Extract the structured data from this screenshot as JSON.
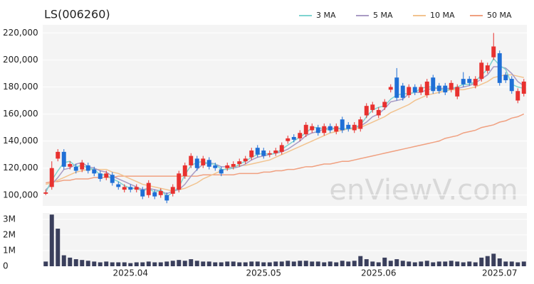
{
  "chart_data": {
    "type": "candlestick",
    "title": "LS(006260)",
    "watermark": "enViewV.com",
    "categories": [
      null,
      null,
      null,
      null,
      null,
      null,
      null,
      null,
      null,
      null,
      null,
      null,
      null,
      null,
      "2025.04",
      null,
      null,
      null,
      null,
      null,
      null,
      null,
      null,
      null,
      null,
      null,
      null,
      null,
      null,
      null,
      null,
      null,
      null,
      null,
      null,
      null,
      "2025.05",
      null,
      null,
      null,
      null,
      null,
      null,
      null,
      null,
      null,
      null,
      null,
      null,
      null,
      null,
      null,
      null,
      null,
      null,
      "2025.06",
      null,
      null,
      null,
      null,
      null,
      null,
      null,
      null,
      null,
      null,
      null,
      null,
      null,
      null,
      null,
      null,
      null,
      null,
      null,
      "2025.07",
      null,
      null,
      null,
      null
    ],
    "open": [
      101000,
      106000,
      127000,
      132000,
      121000,
      121000,
      119000,
      122000,
      119000,
      116000,
      113000,
      115000,
      108000,
      104000,
      106000,
      104000,
      104000,
      100000,
      102000,
      100000,
      100000,
      101000,
      104000,
      114000,
      122000,
      127000,
      122000,
      126000,
      122000,
      119000,
      120000,
      121000,
      123000,
      125000,
      128000,
      135000,
      133000,
      130000,
      131000,
      132000,
      140000,
      143000,
      142000,
      145000,
      148000,
      150000,
      146000,
      151000,
      147000,
      156000,
      152000,
      148000,
      149000,
      159000,
      163000,
      159000,
      165000,
      178000,
      187000,
      181000,
      174000,
      180000,
      176000,
      174000,
      187000,
      181000,
      181000,
      178000,
      173000,
      186000,
      186000,
      181000,
      186000,
      192000,
      202000,
      205000,
      189000,
      186000,
      170000,
      175000
    ],
    "high": [
      104000,
      125000,
      134000,
      134000,
      125000,
      123000,
      126000,
      124000,
      121000,
      118000,
      118000,
      117000,
      110000,
      108000,
      108000,
      108000,
      106000,
      111000,
      104000,
      105000,
      102000,
      108000,
      118000,
      124000,
      131000,
      129000,
      129000,
      128000,
      124000,
      121000,
      124000,
      125000,
      127000,
      129000,
      135000,
      137000,
      135000,
      133000,
      135000,
      139000,
      144000,
      145000,
      148000,
      154000,
      153000,
      152000,
      153000,
      153000,
      153000,
      158000,
      154000,
      154000,
      158000,
      168000,
      169000,
      165000,
      171000,
      182000,
      194000,
      183000,
      182000,
      182000,
      182000,
      186000,
      189000,
      183000,
      183000,
      185000,
      182000,
      191000,
      188000,
      188000,
      200000,
      198000,
      220000,
      207000,
      191000,
      188000,
      179000,
      186000
    ],
    "low": [
      100000,
      104000,
      125000,
      119000,
      119000,
      116000,
      117000,
      116000,
      114000,
      110000,
      111000,
      107000,
      104000,
      102000,
      102000,
      102000,
      97000,
      98000,
      97000,
      98000,
      94000,
      99000,
      102000,
      112000,
      120000,
      118000,
      120000,
      119000,
      118000,
      114000,
      118000,
      119000,
      121000,
      123000,
      126000,
      128000,
      127000,
      128000,
      129000,
      130000,
      138000,
      139000,
      140000,
      143000,
      146000,
      144000,
      144000,
      146000,
      145000,
      146000,
      147000,
      146000,
      147000,
      157000,
      161000,
      157000,
      163000,
      176000,
      170000,
      170000,
      172000,
      174000,
      174000,
      172000,
      175000,
      175000,
      174000,
      176000,
      171000,
      180000,
      181000,
      179000,
      184000,
      190000,
      200000,
      181000,
      183000,
      175000,
      168000,
      173000
    ],
    "close": [
      102000,
      120000,
      132000,
      121000,
      123000,
      118000,
      124000,
      118000,
      116000,
      112000,
      116000,
      109000,
      106000,
      106000,
      104000,
      106000,
      99000,
      109000,
      99000,
      103000,
      96000,
      106000,
      116000,
      122000,
      129000,
      120000,
      127000,
      121000,
      120000,
      116000,
      122000,
      123000,
      125000,
      127000,
      133000,
      130000,
      129000,
      131000,
      133000,
      137000,
      142000,
      141000,
      146000,
      152000,
      151000,
      146000,
      151000,
      148000,
      151000,
      148000,
      149000,
      152000,
      156000,
      166000,
      167000,
      163000,
      169000,
      180000,
      172000,
      172000,
      180000,
      176000,
      180000,
      184000,
      177000,
      177000,
      176000,
      183000,
      180000,
      182000,
      183000,
      186000,
      198000,
      196000,
      210000,
      183000,
      185000,
      177000,
      177000,
      184000
    ],
    "up_color": "#e8312f",
    "down_color": "#1f6fd6",
    "series": [
      {
        "name": "3 MA",
        "color": "#7fd4d0",
        "values": [
          102000,
          111000,
          118000,
          124000,
          125000,
          121000,
          122000,
          120000,
          119000,
          115000,
          115000,
          112000,
          110000,
          107000,
          105000,
          105000,
          103000,
          105000,
          102000,
          104000,
          99000,
          102000,
          106000,
          115000,
          122000,
          124000,
          125000,
          123000,
          123000,
          119000,
          119000,
          120000,
          123000,
          125000,
          128000,
          130000,
          131000,
          130000,
          131000,
          134000,
          137000,
          140000,
          143000,
          146000,
          150000,
          150000,
          149000,
          148000,
          150000,
          149000,
          149000,
          150000,
          152000,
          158000,
          163000,
          165000,
          166000,
          171000,
          174000,
          175000,
          175000,
          176000,
          179000,
          180000,
          180000,
          179000,
          177000,
          179000,
          180000,
          182000,
          182000,
          184000,
          189000,
          193000,
          201000,
          196000,
          193000,
          182000,
          180000,
          179000
        ]
      },
      {
        "name": "5 MA",
        "color": "#a99bc4",
        "values": [
          104000,
          108000,
          113000,
          119000,
          120000,
          123000,
          124000,
          121000,
          120000,
          118000,
          117000,
          114000,
          112000,
          110000,
          108000,
          106000,
          104000,
          105000,
          104000,
          103000,
          101000,
          103000,
          104000,
          108000,
          114000,
          119000,
          123000,
          124000,
          123000,
          121000,
          121000,
          120000,
          121000,
          123000,
          126000,
          128000,
          129000,
          130000,
          131000,
          132000,
          134000,
          137000,
          140000,
          144000,
          146000,
          147000,
          149000,
          150000,
          149000,
          149000,
          149000,
          150000,
          151000,
          154000,
          158000,
          160000,
          164000,
          169000,
          170000,
          171000,
          175000,
          176000,
          176000,
          178000,
          179000,
          179000,
          179000,
          179000,
          179000,
          180000,
          181000,
          183000,
          186000,
          189000,
          195000,
          195000,
          194000,
          190000,
          184000,
          181000
        ]
      },
      {
        "name": "10 MA",
        "color": "#f2c38f",
        "values": [
          108000,
          109000,
          111000,
          113000,
          115000,
          117000,
          118000,
          119000,
          119000,
          119000,
          119000,
          117000,
          116000,
          114000,
          112000,
          110000,
          108000,
          107000,
          106000,
          105000,
          104000,
          103000,
          104000,
          105000,
          107000,
          109000,
          112000,
          114000,
          116000,
          118000,
          120000,
          121000,
          122000,
          122000,
          123000,
          124000,
          125000,
          126000,
          128000,
          130000,
          132000,
          134000,
          136000,
          138000,
          140000,
          142000,
          144000,
          146000,
          147000,
          148000,
          149000,
          149000,
          150000,
          152000,
          154000,
          156000,
          158000,
          161000,
          163000,
          165000,
          167000,
          170000,
          172000,
          174000,
          175000,
          176000,
          177000,
          178000,
          178000,
          178000,
          179000,
          180000,
          182000,
          184000,
          187000,
          188000,
          189000,
          189000,
          188000,
          187000
        ]
      },
      {
        "name": "50 MA",
        "color": "#f0a080",
        "values": [
          109000,
          110000,
          110000,
          111000,
          111000,
          112000,
          112000,
          112000,
          113000,
          113000,
          113000,
          113000,
          114000,
          114000,
          114000,
          114000,
          114000,
          114000,
          114000,
          114000,
          114000,
          114000,
          114000,
          114000,
          114000,
          114000,
          115000,
          115000,
          115000,
          115000,
          115000,
          115000,
          116000,
          116000,
          116000,
          116000,
          117000,
          117000,
          118000,
          118000,
          119000,
          119000,
          120000,
          121000,
          121000,
          122000,
          123000,
          123000,
          124000,
          125000,
          125000,
          126000,
          127000,
          128000,
          129000,
          130000,
          131000,
          132000,
          133000,
          134000,
          135000,
          136000,
          137000,
          138000,
          139000,
          140000,
          142000,
          143000,
          144000,
          146000,
          147000,
          148000,
          150000,
          151000,
          152000,
          154000,
          155000,
          157000,
          158000,
          160000
        ]
      }
    ],
    "ylim": [
      92000,
      226000
    ],
    "yticks": [
      {
        "value": 100000,
        "label": "100,000"
      },
      {
        "value": 120000,
        "label": "120,000"
      },
      {
        "value": 140000,
        "label": "140,000"
      },
      {
        "value": 160000,
        "label": "160,000"
      },
      {
        "value": 180000,
        "label": "180,000"
      },
      {
        "value": 200000,
        "label": "200,000"
      },
      {
        "value": 220000,
        "label": "220,000"
      }
    ],
    "volume": {
      "color": "#3a3f5c",
      "values": [
        300000,
        3300000,
        2400000,
        700000,
        550000,
        450000,
        400000,
        350000,
        300000,
        250000,
        300000,
        250000,
        250000,
        250000,
        200000,
        250000,
        250000,
        300000,
        250000,
        250000,
        300000,
        350000,
        400000,
        350000,
        450000,
        350000,
        300000,
        300000,
        250000,
        250000,
        300000,
        300000,
        250000,
        250000,
        300000,
        300000,
        250000,
        250000,
        300000,
        300000,
        350000,
        300000,
        350000,
        350000,
        300000,
        300000,
        250000,
        300000,
        250000,
        350000,
        300000,
        350000,
        650000,
        450000,
        300000,
        250000,
        550000,
        350000,
        450000,
        350000,
        300000,
        250000,
        300000,
        350000,
        250000,
        300000,
        300000,
        350000,
        300000,
        250000,
        300000,
        250000,
        550000,
        650000,
        800000,
        500000,
        300000,
        300000,
        250000,
        300000
      ],
      "ylim": [
        0,
        3400000
      ],
      "yticks": [
        0,
        {
          "value": 1000000,
          "label": "1M"
        },
        {
          "value": 2000000,
          "label": "2M"
        },
        {
          "value": 3000000,
          "label": "3M"
        }
      ]
    },
    "grid": true,
    "legend": "top-right"
  }
}
